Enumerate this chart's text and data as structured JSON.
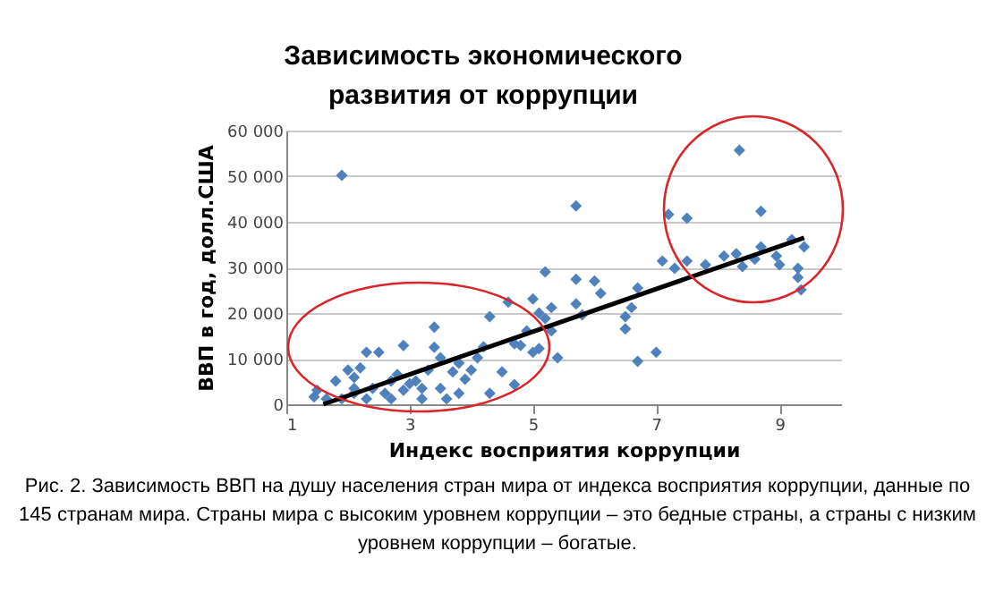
{
  "chart_data": {
    "type": "scatter",
    "title": [
      "Зависимость экономического",
      "развития от коррупции"
    ],
    "xlabel": "Индекс восприятия коррупции",
    "ylabel": "ВВП в год, долл.США",
    "annotations": [
      "Рис. 2. Зависимость ВВП на душу населения стран мира от индекса восприятия коррупции, данные по 145 странам мира. Страны мира с высоким уровнем коррупции – это бедные страны, а страны с низким уровнем коррупции – богатые."
    ],
    "xlim": [
      1,
      10
    ],
    "xticks": [
      1,
      3,
      5,
      7,
      9
    ],
    "ylim": [
      0,
      60000
    ],
    "yticks": [
      {
        "value": 0,
        "label": "0"
      },
      {
        "value": 10000,
        "label": "10 000"
      },
      {
        "value": 20000,
        "label": "20 000"
      },
      {
        "value": 30000,
        "label": "30 000"
      },
      {
        "value": 40000,
        "label": "40 000"
      },
      {
        "value": 50000,
        "label": "50 000"
      },
      {
        "value": 60000,
        "label": "60 000"
      }
    ],
    "grid": "y",
    "legend": false,
    "series": [
      {
        "marker": "diamond",
        "color": "#4f81bd",
        "x": [
          8.35,
          5.7,
          7.2,
          7.5,
          8.7,
          7.1,
          7.3,
          7.5,
          7.8,
          8.1,
          8.3,
          8.4,
          8.6,
          8.7,
          8.95,
          9.0,
          9.2,
          9.4,
          9.3,
          9.3,
          9.35,
          5.2,
          5.7,
          6.0,
          6.1,
          6.7,
          6.6,
          6.5,
          6.5,
          6.7,
          7.0,
          4.6,
          4.3,
          5.0,
          5.1,
          5.3,
          5.2,
          5.3,
          5.7,
          5.8,
          4.9,
          4.7,
          4.8,
          5.0,
          5.1,
          5.4,
          4.5,
          4.7,
          4.2,
          1.9,
          3.4,
          3.4,
          2.9,
          2.5,
          2.3,
          2.0,
          2.1,
          1.8,
          1.5,
          1.45,
          1.65,
          2.1,
          2.4,
          2.7,
          3.1,
          3.3,
          3.5,
          3.8,
          4.0,
          4.1,
          3.9,
          3.2,
          2.7,
          2.3,
          1.9,
          3.6,
          3.8,
          4.3,
          2.9,
          2.6,
          2.1,
          3.2,
          3.5,
          3.7,
          2.2,
          2.8,
          3.0
        ],
        "values": [
          55700,
          43500,
          41600,
          40800,
          42300,
          31400,
          29800,
          31400,
          30600,
          32500,
          33000,
          30200,
          31800,
          34500,
          32500,
          30600,
          36100,
          34500,
          29800,
          27800,
          25100,
          29000,
          27400,
          27000,
          24300,
          25500,
          21200,
          19200,
          16500,
          9400,
          11400,
          22400,
          19200,
          23100,
          20000,
          21200,
          18800,
          16100,
          22000,
          19600,
          16100,
          13300,
          12900,
          11400,
          12200,
          10200,
          7100,
          4300,
          12600,
          50200,
          16900,
          12500,
          12900,
          11400,
          11400,
          7500,
          5900,
          5100,
          3100,
          1600,
          1200,
          2400,
          3500,
          5100,
          5100,
          7500,
          10200,
          9000,
          7500,
          10200,
          5500,
          1200,
          1200,
          1200,
          1200,
          1200,
          2400,
          2400,
          3100,
          2400,
          3500,
          3500,
          3500,
          7100,
          8000,
          6500,
          4500
        ]
      },
      {
        "type": "line",
        "marker": "none",
        "color": "#000000",
        "x": [
          1.6,
          9.4
        ],
        "values": [
          0,
          36500
        ]
      }
    ]
  }
}
